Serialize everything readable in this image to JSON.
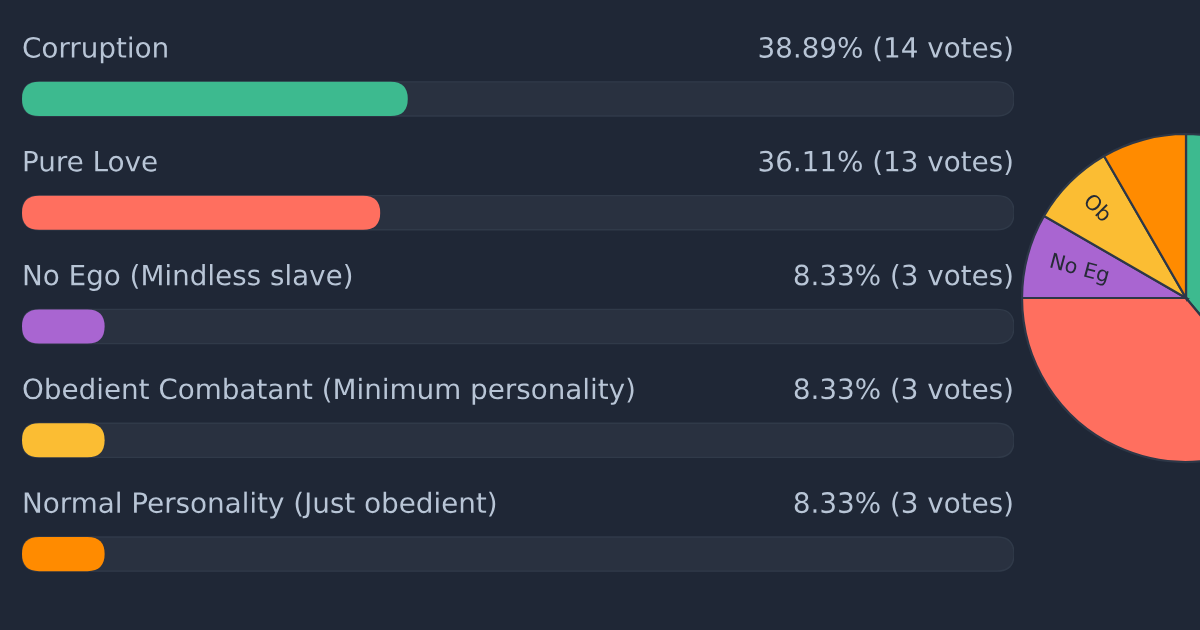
{
  "chart_data": [
    {
      "type": "bar",
      "orientation": "horizontal",
      "categories": [
        "Corruption",
        "Pure Love",
        "No Ego (Mindless slave)",
        "Obedient Combatant (Minimum personality)",
        "Normal Personality (Just obedient)"
      ],
      "values": [
        38.89,
        36.11,
        8.33,
        8.33,
        8.33
      ],
      "colors": [
        "#3dba8f",
        "#ff6f5f",
        "#a965d1",
        "#fbbd33",
        "#ff8b00"
      ],
      "value_labels": [
        "38.89% (14 votes)",
        "36.11% (13 votes)",
        "8.33% (3 votes)",
        "8.33% (3 votes)",
        "8.33% (3 votes)"
      ],
      "xlim": [
        0,
        100
      ],
      "tick_labels": false
    },
    {
      "type": "pie",
      "categories": [
        null,
        null,
        "No Eg",
        "Ob",
        null
      ],
      "values": [
        38.89,
        36.11,
        8.33,
        8.33,
        8.33
      ],
      "colors": [
        "#3dba8f",
        "#ff6f5f",
        "#a965d1",
        "#fbbd33",
        "#ff8b00"
      ]
    }
  ]
}
